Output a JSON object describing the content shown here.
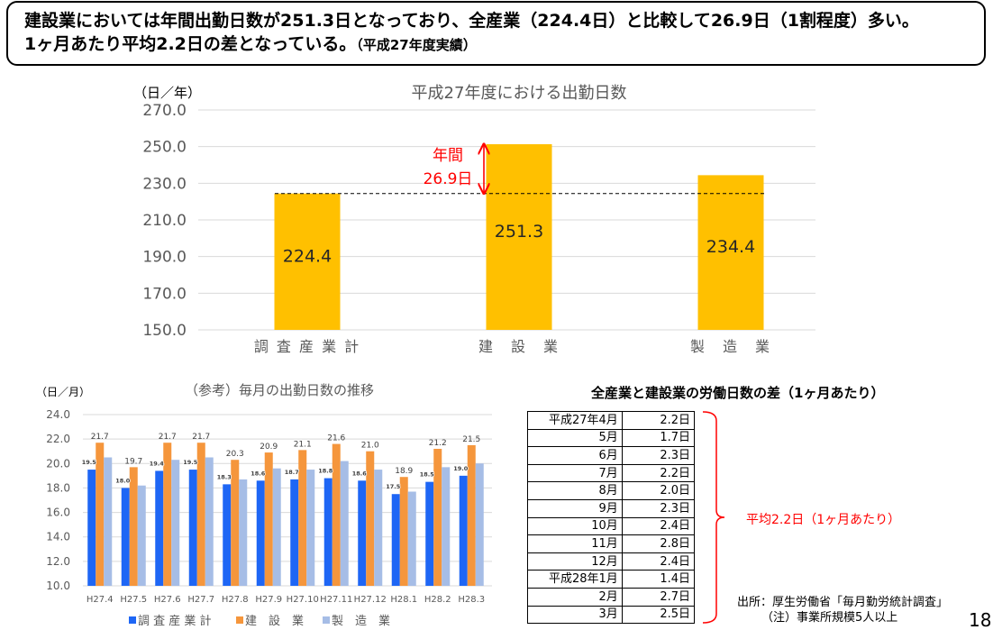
{
  "header": {
    "line1": "建設業においては年間出勤日数が251.3日となっており、全産業（224.4日）と比較して26.9日（1割程度）多い。",
    "line2": "1ヶ月あたり平均2.2日の差となっている。",
    "line2_note": "（平成27年度実績）"
  },
  "chart_data": [
    {
      "type": "bar",
      "title": "平成27年度における出勤日数",
      "ylabel": "（日／年）",
      "categories": [
        "調 査 産 業 計",
        "建　設　業",
        "製　造　業"
      ],
      "values": [
        224.4,
        251.3,
        234.4
      ],
      "ylim": [
        150,
        270
      ],
      "ytick_step": 20,
      "grid": true,
      "legend": "none",
      "bar_color": "#FFC000",
      "annotation": {
        "lines": [
          "年間",
          "26.9日"
        ],
        "from": 224.4,
        "to": 251.3,
        "reference_line": 224.4,
        "color": "#FF0000"
      }
    },
    {
      "type": "bar",
      "title": "（参考）毎月の出勤日数の推移",
      "ylabel": "（日／月）",
      "categories": [
        "H27.4",
        "H27.5",
        "H27.6",
        "H27.7",
        "H27.8",
        "H27.9",
        "H27.10",
        "H27.11",
        "H27.12",
        "H28.1",
        "H28.2",
        "H28.3"
      ],
      "series": [
        {
          "name": "調 査 産 業 計",
          "values": [
            19.5,
            18.0,
            19.4,
            19.5,
            18.3,
            18.6,
            18.7,
            18.8,
            18.6,
            17.5,
            18.5,
            19.0
          ],
          "color": "#1E66F5",
          "data_labels": true
        },
        {
          "name": "建　設　業",
          "values": [
            21.7,
            19.7,
            21.7,
            21.7,
            20.3,
            20.9,
            21.1,
            21.6,
            21.0,
            18.9,
            21.2,
            21.5
          ],
          "color": "#F5963C",
          "data_labels": true
        },
        {
          "name": "製　造　業",
          "values": [
            20.5,
            18.2,
            20.3,
            20.5,
            18.7,
            19.6,
            19.5,
            20.2,
            19.5,
            17.7,
            19.7,
            20.0
          ],
          "color": "#A6BDE6",
          "data_labels": false
        }
      ],
      "ylim": [
        10,
        24
      ],
      "ytick_step": 2,
      "grid": true,
      "legend": "bottom"
    }
  ],
  "diff_table": {
    "title": "全産業と建設業の労働日数の差（1ヶ月あたり）",
    "rows": [
      {
        "month": "平成27年4月",
        "value": "2.2日"
      },
      {
        "month": "5月",
        "value": "1.7日"
      },
      {
        "month": "6月",
        "value": "2.3日"
      },
      {
        "month": "7月",
        "value": "2.2日"
      },
      {
        "month": "8月",
        "value": "2.0日"
      },
      {
        "month": "9月",
        "value": "2.3日"
      },
      {
        "month": "10月",
        "value": "2.4日"
      },
      {
        "month": "11月",
        "value": "2.8日"
      },
      {
        "month": "12月",
        "value": "2.4日"
      },
      {
        "month": "平成28年1月",
        "value": "1.4日"
      },
      {
        "month": "2月",
        "value": "2.7日"
      },
      {
        "month": "3月",
        "value": "2.5日"
      }
    ],
    "bracket_note": "平均2.2日（1ヶ月あたり）",
    "bracket_color": "#FF0000"
  },
  "source": {
    "line1": "出所：厚生労働省「毎月勤労統計調査」",
    "line2": "（注）事業所規模5人以上"
  },
  "page_number": "18"
}
